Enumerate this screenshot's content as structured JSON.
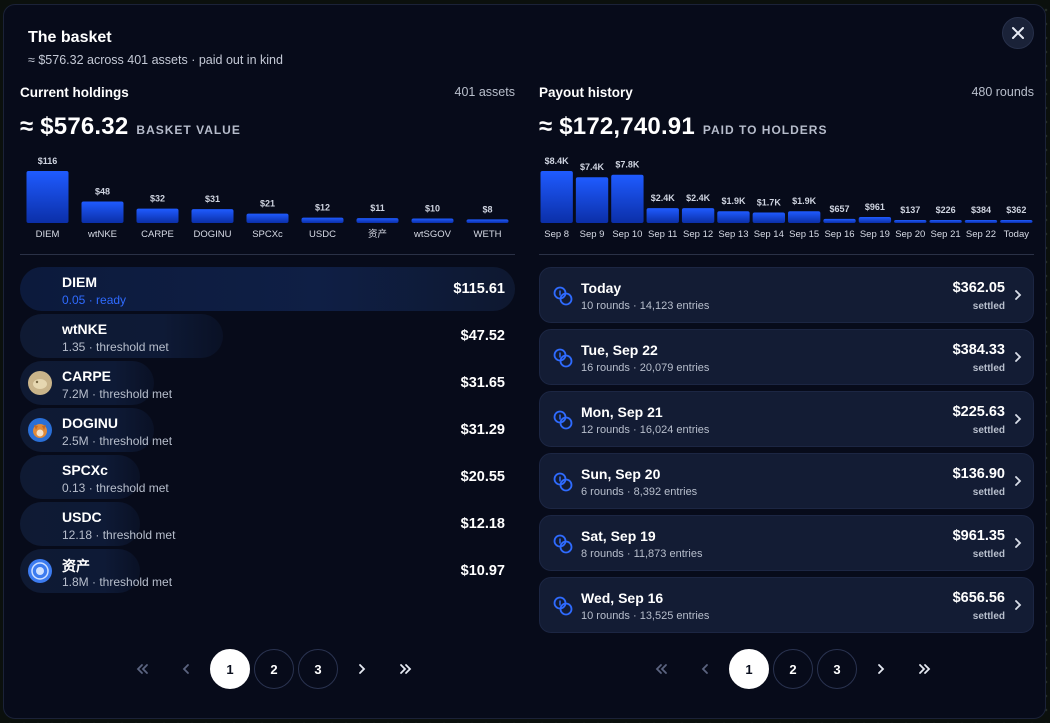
{
  "modal": {
    "title": "The basket",
    "subtitle": "≈ $576.32 across 401 assets · paid out in kind"
  },
  "holdings": {
    "title": "Current holdings",
    "count": "401 assets",
    "total": "≈ $576.32",
    "total_label": "BASKET VALUE",
    "rows": [
      {
        "name": "DIEM",
        "meta": "0.05 · ready",
        "value": "$115.61",
        "share": 1.0,
        "active": true,
        "avatar": ""
      },
      {
        "name": "wtNKE",
        "meta": "1.35 · threshold met",
        "value": "$47.52",
        "share": 0.41,
        "active": false,
        "avatar": ""
      },
      {
        "name": "CARPE",
        "meta": "7.2M · threshold met",
        "value": "$31.65",
        "share": 0.27,
        "active": false,
        "avatar": "carpe"
      },
      {
        "name": "DOGINU",
        "meta": "2.5M · threshold met",
        "value": "$31.29",
        "share": 0.27,
        "active": false,
        "avatar": "doginu"
      },
      {
        "name": "SPCXc",
        "meta": "0.13 · threshold met",
        "value": "$20.55",
        "share": 0.18,
        "active": false,
        "avatar": ""
      },
      {
        "name": "USDC",
        "meta": "12.18 · threshold met",
        "value": "$12.18",
        "share": 0.11,
        "active": false,
        "avatar": ""
      },
      {
        "name": "资产",
        "meta": "1.8M · threshold met",
        "value": "$10.97",
        "share": 0.09,
        "active": false,
        "avatar": "zichan"
      }
    ],
    "pages": [
      "1",
      "2",
      "3"
    ],
    "current_page": "1"
  },
  "payouts": {
    "title": "Payout history",
    "count": "480 rounds",
    "total": "≈ $172,740.91",
    "total_label": "PAID TO HOLDERS",
    "cards": [
      {
        "day": "Today",
        "rounds": "10 rounds · 14,123 entries",
        "amount": "$362.05",
        "status": "settled"
      },
      {
        "day": "Tue, Sep 22",
        "rounds": "16 rounds · 20,079 entries",
        "amount": "$384.33",
        "status": "settled"
      },
      {
        "day": "Mon, Sep 21",
        "rounds": "12 rounds · 16,024 entries",
        "amount": "$225.63",
        "status": "settled"
      },
      {
        "day": "Sun, Sep 20",
        "rounds": "6 rounds · 8,392 entries",
        "amount": "$136.90",
        "status": "settled"
      },
      {
        "day": "Sat, Sep 19",
        "rounds": "8 rounds · 11,873 entries",
        "amount": "$961.35",
        "status": "settled"
      },
      {
        "day": "Wed, Sep 16",
        "rounds": "10 rounds · 13,525 entries",
        "amount": "$656.56",
        "status": "settled"
      }
    ],
    "pages": [
      "1",
      "2",
      "3"
    ],
    "current_page": "1"
  },
  "colors": {
    "bar_top": "#1f5bff",
    "bar_bottom": "#0b2fa8",
    "accent": "#2f6bff",
    "background": "#070b1a",
    "card": "#131c34"
  },
  "chart_data": [
    {
      "type": "bar",
      "categories": [
        "DIEM",
        "wtNKE",
        "CARPE",
        "DOGINU",
        "SPCXc",
        "USDC",
        "资产",
        "wtSGOV",
        "WETH"
      ],
      "values": [
        116,
        48,
        32,
        31,
        21,
        12,
        11,
        10,
        8
      ],
      "data_labels": [
        "$116",
        "$48",
        "$32",
        "$31",
        "$21",
        "$12",
        "$11",
        "$10",
        "$8"
      ],
      "title": "",
      "xlabel": "",
      "ylabel": ""
    },
    {
      "type": "bar",
      "categories": [
        "Sep 8",
        "Sep 9",
        "Sep 10",
        "Sep 11",
        "Sep 12",
        "Sep 13",
        "Sep 14",
        "Sep 15",
        "Sep 16",
        "Sep 19",
        "Sep 20",
        "Sep 21",
        "Sep 22",
        "Today"
      ],
      "values": [
        8400,
        7400,
        7800,
        2400,
        2400,
        1900,
        1700,
        1900,
        657,
        961,
        137,
        226,
        384,
        362
      ],
      "data_labels": [
        "$8.4K",
        "$7.4K",
        "$7.8K",
        "$2.4K",
        "$2.4K",
        "$1.9K",
        "$1.7K",
        "$1.9K",
        "$657",
        "$961",
        "$137",
        "$226",
        "$384",
        "$362"
      ],
      "title": "",
      "xlabel": "",
      "ylabel": ""
    }
  ]
}
